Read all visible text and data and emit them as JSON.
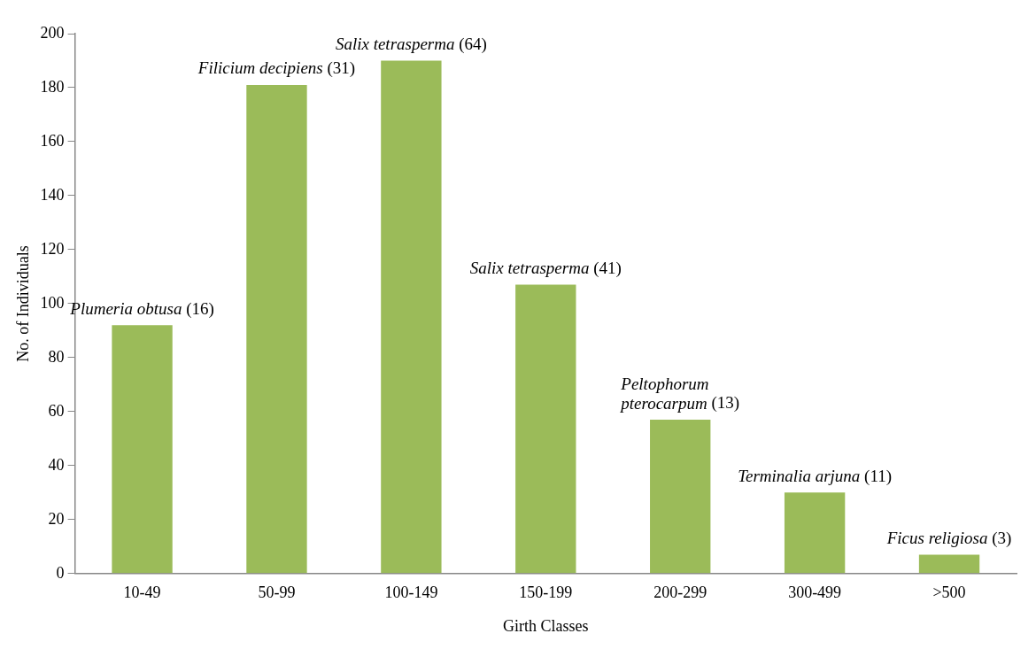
{
  "chart_data": {
    "type": "bar",
    "xlabel": "Girth Classes",
    "ylabel": "No. of Individuals",
    "categories": [
      "10-49",
      "50-99",
      "100-149",
      "150-199",
      "200-299",
      "300-499",
      ">500"
    ],
    "values": [
      92,
      181,
      190,
      107,
      57,
      30,
      7
    ],
    "color": "#9bbb59",
    "ylim": [
      0,
      200
    ],
    "yticks": [
      0,
      20,
      40,
      60,
      80,
      100,
      120,
      140,
      160,
      180,
      200
    ],
    "grid": false,
    "legend": false,
    "annotations": [
      {
        "text": "Plumeria obtusa (16)",
        "x": "10-49",
        "y": 92
      },
      {
        "text": "Filicium decipiens (31)",
        "x": "50-99",
        "y": 181
      },
      {
        "text": "Salix tetrasperma (64)",
        "x": "100-149",
        "y": 190
      },
      {
        "text": "Salix tetrasperma (41)",
        "x": "150-199",
        "y": 107
      },
      {
        "text": "Peltophorum pterocarpum (13)",
        "x": "200-299",
        "y": 57
      },
      {
        "text": "Terminalia arjuna (11)",
        "x": "300-499",
        "y": 30
      },
      {
        "text": "Ficus religiosa (3)",
        "x": ">500",
        "y": 7
      }
    ]
  }
}
